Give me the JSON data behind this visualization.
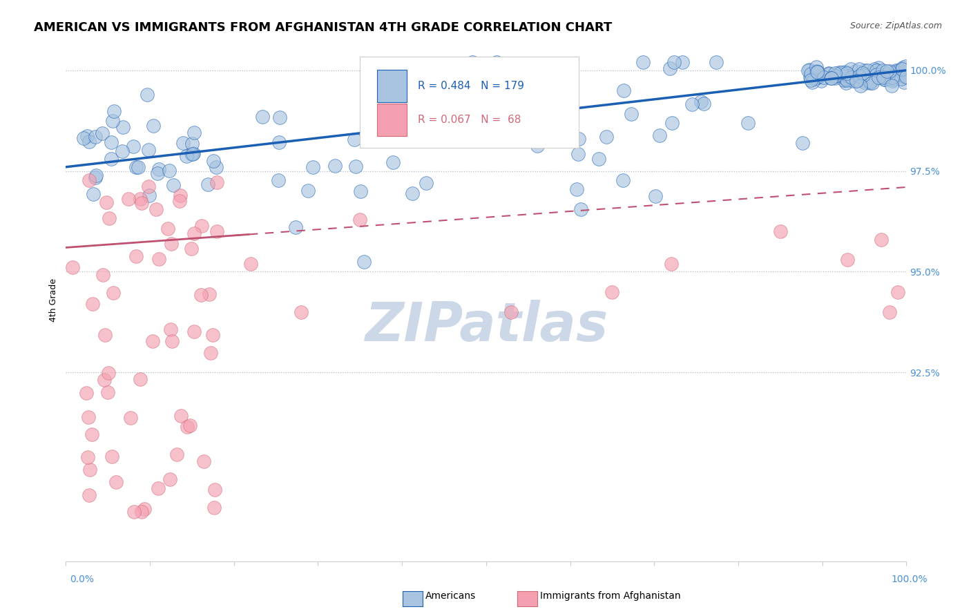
{
  "title": "AMERICAN VS IMMIGRANTS FROM AFGHANISTAN 4TH GRADE CORRELATION CHART",
  "source": "Source: ZipAtlas.com",
  "ylabel": "4th Grade",
  "r_american": 0.484,
  "n_american": 179,
  "r_afghan": 0.067,
  "n_afghan": 68,
  "yticks": [
    0.925,
    0.95,
    0.975,
    1.0
  ],
  "ytick_labels": [
    "92.5%",
    "95.0%",
    "97.5%",
    "100.0%"
  ],
  "xlim": [
    0.0,
    1.0
  ],
  "ylim": [
    0.878,
    1.008
  ],
  "color_american": "#a8c4e0",
  "color_afghan": "#f4a0b0",
  "color_trend_american": "#1a5fb4",
  "color_trend_afghan": "#c05070",
  "watermark": "ZIPatlas",
  "watermark_color": "#ccd8e8",
  "background_color": "#ffffff",
  "title_fontsize": 13,
  "legend_fontsize": 11,
  "axis_label_fontsize": 9,
  "tick_fontsize": 10
}
